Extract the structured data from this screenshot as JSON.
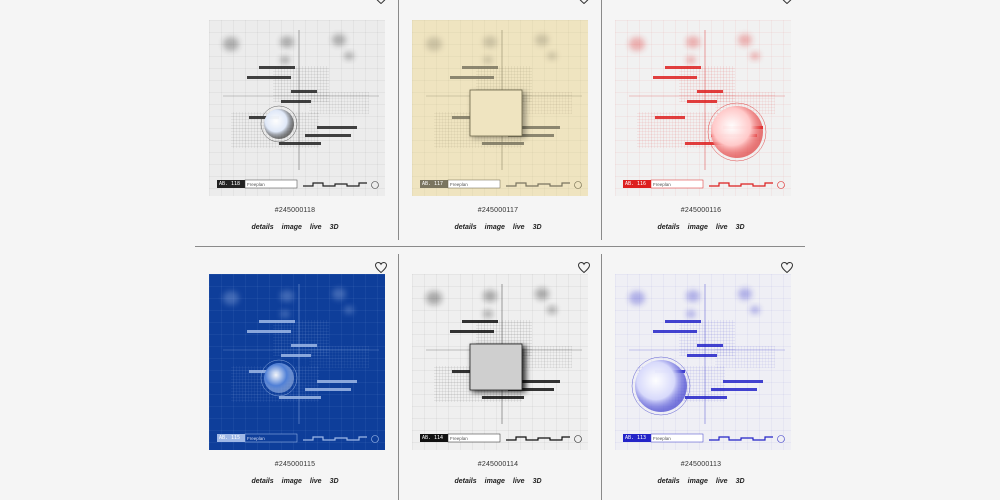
{
  "actions": [
    "details",
    "image",
    "live",
    "3D"
  ],
  "colors": {
    "separator": "#8a8a8a",
    "page_bg": "#f5f5f5"
  },
  "cards": [
    {
      "id": "#245000118",
      "code": "AB. 118",
      "name": "Freeplan",
      "bg": "#ececec",
      "ink": "#3c3c3c",
      "accent": "#222222",
      "orb": "#dfe8f8",
      "circle_large": false,
      "box_style": "grid"
    },
    {
      "id": "#245000117",
      "code": "AB. 117",
      "name": "Freeplan",
      "bg": "#efe4c0",
      "ink": "#6b6548",
      "accent": "#7a7560",
      "orb": "#efe4c0",
      "circle_large": false,
      "box_style": "square"
    },
    {
      "id": "#245000116",
      "code": "AB. 116",
      "name": "Freeplan",
      "bg": "#f1f1f1",
      "ink": "#d22",
      "accent": "#dd1f1f",
      "orb": "#ffc9c9",
      "circle_large": true,
      "box_style": "red"
    },
    {
      "id": "#245000115",
      "code": "AB. 115",
      "name": "Freeplan",
      "bg": "#0e3e9a",
      "ink": "#a7c2ef",
      "accent": "#9fb8e6",
      "orb": "#4f7fd6",
      "circle_large": false,
      "box_style": "blue"
    },
    {
      "id": "#245000114",
      "code": "AB. 114",
      "name": "Freeplan",
      "bg": "#efefef",
      "ink": "#222222",
      "accent": "#111111",
      "orb": "#ddd",
      "circle_large": false,
      "box_style": "dark"
    },
    {
      "id": "#245000113",
      "code": "AB. 113",
      "name": "Freeplan",
      "bg": "#efeff5",
      "ink": "#3b3bc8",
      "accent": "#2323c8",
      "orb": "#d7d9fb",
      "circle_large": true,
      "box_style": "violet"
    }
  ]
}
